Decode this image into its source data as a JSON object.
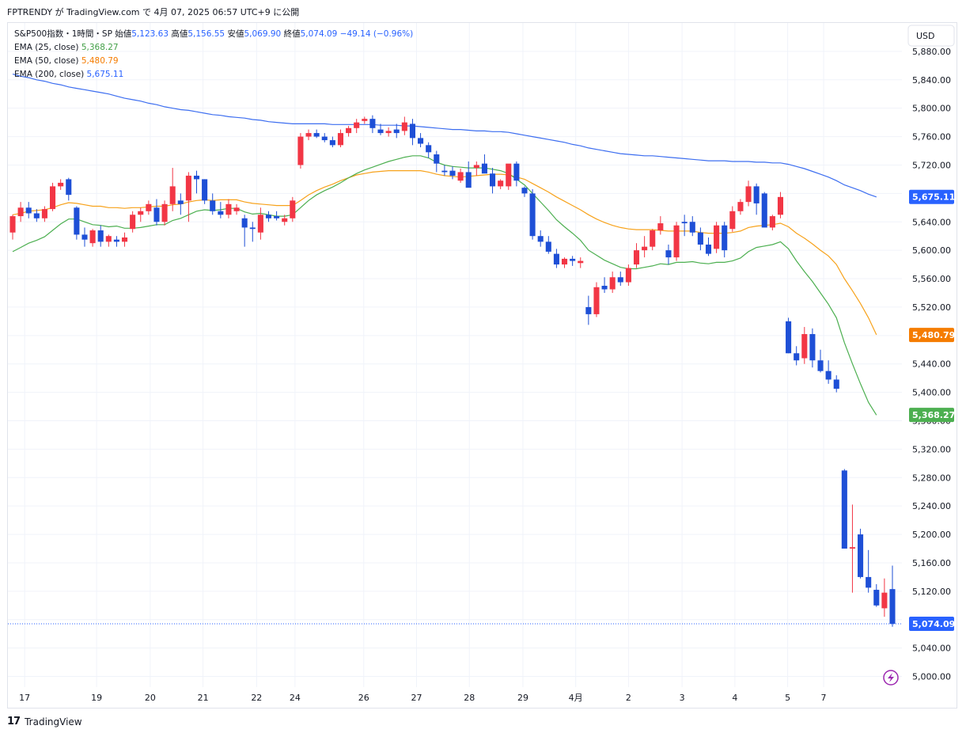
{
  "header": {
    "attribution": "FPTRENDY が TradingView.com で 4月 07, 2025 06:57 UTC+9 に公開"
  },
  "legend": {
    "symbol": "S&P500指数・1時間・SP",
    "open_label": "始値",
    "open": "5,123.63",
    "high_label": "高値",
    "high": "5,156.55",
    "low_label": "安値",
    "low": "5,069.90",
    "close_label": "終値",
    "close": "5,074.09",
    "change": "−49.14 (−0.96%)",
    "ema25_label": "EMA (25, close)",
    "ema25_value": "5,368.27",
    "ema50_label": "EMA (50, close)",
    "ema50_value": "5,480.79",
    "ema200_label": "EMA (200, close)",
    "ema200_value": "5,675.11"
  },
  "currency_button": "USD",
  "footer": {
    "brand": "TradingView"
  },
  "colors": {
    "up": "#f23645",
    "down": "#1e4fd6",
    "ema25": "#4caf50",
    "ema50": "#f7a21b",
    "ema200": "#3d6ef0",
    "grid": "#f0f3fa"
  },
  "chart_data": {
    "type": "candlestick",
    "title": "S&P500指数・1時間・SP",
    "ylim": [
      4985,
      5920
    ],
    "y_ticks": [
      5000,
      5040,
      5080,
      5120,
      5160,
      5200,
      5240,
      5280,
      5320,
      5360,
      5400,
      5440,
      5480,
      5520,
      5560,
      5600,
      5640,
      5680,
      5720,
      5760,
      5800,
      5840,
      5880
    ],
    "y_tick_labels": [
      "5,000.00",
      "5,040.00",
      "5,080.00",
      "5,120.00",
      "5,160.00",
      "5,200.00",
      "5,240.00",
      "5,280.00",
      "5,320.00",
      "5,360.00",
      "5,400.00",
      "5,440.00",
      "5,480.00",
      "5,520.00",
      "5,560.00",
      "5,600.00",
      "5,640.00",
      "5,680.00",
      "5,720.00",
      "5,760.00",
      "5,800.00",
      "5,840.00",
      "5,880.00"
    ],
    "x_labels": [
      {
        "label": "17",
        "bar": 1.5
      },
      {
        "label": "19",
        "bar": 10.5
      },
      {
        "label": "20",
        "bar": 17.2
      },
      {
        "label": "21",
        "bar": 23.8
      },
      {
        "label": "22",
        "bar": 30.5
      },
      {
        "label": "24",
        "bar": 35.3
      },
      {
        "label": "26",
        "bar": 43.9
      },
      {
        "label": "27",
        "bar": 50.5
      },
      {
        "label": "28",
        "bar": 57.1
      },
      {
        "label": "29",
        "bar": 63.8
      },
      {
        "label": "4月",
        "bar": 70.4
      },
      {
        "label": "2",
        "bar": 77.0
      },
      {
        "label": "3",
        "bar": 83.7
      },
      {
        "label": "4",
        "bar": 90.3
      },
      {
        "label": "5",
        "bar": 96.9
      },
      {
        "label": "7",
        "bar": 101.4
      }
    ],
    "candles": [
      [
        5625,
        5650,
        5615,
        5648
      ],
      [
        5648,
        5668,
        5640,
        5660
      ],
      [
        5660,
        5668,
        5645,
        5652
      ],
      [
        5652,
        5658,
        5640,
        5645
      ],
      [
        5645,
        5662,
        5640,
        5658
      ],
      [
        5658,
        5695,
        5655,
        5690
      ],
      [
        5690,
        5700,
        5685,
        5695
      ],
      [
        5700,
        5702,
        5670,
        5678
      ],
      [
        5660,
        5662,
        5615,
        5622
      ],
      [
        5622,
        5632,
        5605,
        5615
      ],
      [
        5610,
        5630,
        5605,
        5628
      ],
      [
        5628,
        5635,
        5605,
        5612
      ],
      [
        5612,
        5622,
        5605,
        5620
      ],
      [
        5615,
        5620,
        5605,
        5612
      ],
      [
        5612,
        5625,
        5605,
        5618
      ],
      [
        5630,
        5655,
        5625,
        5650
      ],
      [
        5650,
        5660,
        5640,
        5655
      ],
      [
        5655,
        5670,
        5650,
        5665
      ],
      [
        5660,
        5672,
        5635,
        5640
      ],
      [
        5640,
        5670,
        5635,
        5665
      ],
      [
        5665,
        5716,
        5655,
        5690
      ],
      [
        5670,
        5680,
        5650,
        5665
      ],
      [
        5670,
        5710,
        5640,
        5705
      ],
      [
        5705,
        5712,
        5680,
        5700
      ],
      [
        5700,
        5700,
        5665,
        5670
      ],
      [
        5670,
        5680,
        5650,
        5655
      ],
      [
        5655,
        5668,
        5645,
        5650
      ],
      [
        5650,
        5672,
        5645,
        5665
      ],
      [
        5655,
        5665,
        5650,
        5660
      ],
      [
        5645,
        5650,
        5605,
        5632
      ],
      [
        5632,
        5640,
        5612,
        5630
      ],
      [
        5625,
        5660,
        5615,
        5650
      ],
      [
        5650,
        5655,
        5640,
        5645
      ],
      [
        5648,
        5655,
        5642,
        5645
      ],
      [
        5640,
        5650,
        5635,
        5645
      ],
      [
        5645,
        5675,
        5640,
        5670
      ],
      [
        5720,
        5765,
        5715,
        5760
      ],
      [
        5760,
        5770,
        5755,
        5765
      ],
      [
        5765,
        5770,
        5758,
        5760
      ],
      [
        5760,
        5765,
        5752,
        5755
      ],
      [
        5755,
        5760,
        5745,
        5748
      ],
      [
        5748,
        5770,
        5745,
        5765
      ],
      [
        5765,
        5775,
        5760,
        5772
      ],
      [
        5772,
        5785,
        5765,
        5780
      ],
      [
        5782,
        5788,
        5778,
        5785
      ],
      [
        5785,
        5790,
        5765,
        5772
      ],
      [
        5770,
        5778,
        5762,
        5765
      ],
      [
        5765,
        5773,
        5760,
        5768
      ],
      [
        5770,
        5778,
        5758,
        5765
      ],
      [
        5768,
        5788,
        5762,
        5780
      ],
      [
        5778,
        5785,
        5748,
        5758
      ],
      [
        5758,
        5765,
        5745,
        5750
      ],
      [
        5748,
        5752,
        5730,
        5738
      ],
      [
        5735,
        5740,
        5710,
        5722
      ],
      [
        5712,
        5720,
        5705,
        5710
      ],
      [
        5712,
        5718,
        5700,
        5705
      ],
      [
        5698,
        5715,
        5695,
        5710
      ],
      [
        5710,
        5725,
        5692,
        5688
      ],
      [
        5716,
        5725,
        5705,
        5720
      ],
      [
        5722,
        5735,
        5710,
        5708
      ],
      [
        5708,
        5716,
        5680,
        5690
      ],
      [
        5690,
        5700,
        5686,
        5698
      ],
      [
        5690,
        5720,
        5685,
        5722
      ],
      [
        5722,
        5725,
        5690,
        5698
      ],
      [
        5688,
        5690,
        5675,
        5680
      ],
      [
        5680,
        5686,
        5615,
        5620
      ],
      [
        5620,
        5628,
        5605,
        5612
      ],
      [
        5612,
        5620,
        5595,
        5598
      ],
      [
        5595,
        5602,
        5575,
        5580
      ],
      [
        5580,
        5590,
        5575,
        5588
      ],
      [
        5588,
        5592,
        5578,
        5585
      ],
      [
        5582,
        5590,
        5575,
        5585
      ],
      [
        5520,
        5536,
        5495,
        5510
      ],
      [
        5510,
        5555,
        5506,
        5548
      ],
      [
        5550,
        5562,
        5540,
        5545
      ],
      [
        5545,
        5570,
        5540,
        5562
      ],
      [
        5562,
        5570,
        5550,
        5555
      ],
      [
        5555,
        5580,
        5550,
        5575
      ],
      [
        5580,
        5610,
        5575,
        5600
      ],
      [
        5600,
        5620,
        5590,
        5605
      ],
      [
        5605,
        5630,
        5600,
        5628
      ],
      [
        5628,
        5648,
        5622,
        5638
      ],
      [
        5600,
        5608,
        5580,
        5590
      ],
      [
        5590,
        5640,
        5585,
        5635
      ],
      [
        5640,
        5650,
        5620,
        5638
      ],
      [
        5640,
        5648,
        5620,
        5625
      ],
      [
        5625,
        5632,
        5600,
        5608
      ],
      [
        5608,
        5618,
        5592,
        5595
      ],
      [
        5602,
        5640,
        5596,
        5635
      ],
      [
        5635,
        5640,
        5590,
        5600
      ],
      [
        5630,
        5662,
        5626,
        5655
      ],
      [
        5655,
        5672,
        5650,
        5668
      ],
      [
        5668,
        5698,
        5662,
        5690
      ],
      [
        5690,
        5694,
        5650,
        5666
      ],
      [
        5680,
        5682,
        5640,
        5632
      ],
      [
        5632,
        5650,
        5628,
        5648
      ],
      [
        5650,
        5682,
        5645,
        5675
      ],
      [
        5500,
        5505,
        5455,
        5455
      ],
      [
        5455,
        5465,
        5438,
        5445
      ],
      [
        5448,
        5492,
        5440,
        5482
      ],
      [
        5482,
        5490,
        5435,
        5445
      ],
      [
        5445,
        5460,
        5428,
        5430
      ],
      [
        5430,
        5445,
        5412,
        5418
      ],
      [
        5418,
        5424,
        5400,
        5405
      ],
      [
        5290,
        5292,
        5185,
        5180
      ],
      [
        5180,
        5242,
        5118,
        5182
      ],
      [
        5200,
        5208,
        5138,
        5140
      ],
      [
        5140,
        5178,
        5118,
        5125
      ],
      [
        5122,
        5130,
        5098,
        5100
      ],
      [
        5096,
        5138,
        5084,
        5118
      ],
      [
        5123,
        5156,
        5070,
        5074
      ]
    ],
    "ema25": [
      5598,
      5604,
      5610,
      5614,
      5619,
      5628,
      5637,
      5644,
      5644,
      5640,
      5636,
      5635,
      5633,
      5634,
      5631,
      5631,
      5632,
      5634,
      5636,
      5636,
      5642,
      5645,
      5650,
      5655,
      5657,
      5656,
      5657,
      5659,
      5659,
      5654,
      5651,
      5652,
      5650,
      5648,
      5648,
      5650,
      5660,
      5670,
      5678,
      5684,
      5689,
      5695,
      5702,
      5708,
      5713,
      5717,
      5721,
      5725,
      5728,
      5731,
      5733,
      5733,
      5730,
      5724,
      5720,
      5718,
      5717,
      5716,
      5716,
      5716,
      5714,
      5712,
      5708,
      5700,
      5692,
      5680,
      5668,
      5656,
      5643,
      5633,
      5624,
      5614,
      5600,
      5593,
      5586,
      5581,
      5576,
      5574,
      5574,
      5576,
      5578,
      5581,
      5580,
      5583,
      5583,
      5584,
      5582,
      5581,
      5583,
      5583,
      5585,
      5589,
      5598,
      5604,
      5606,
      5608,
      5612,
      5602,
      5585,
      5570,
      5556,
      5540,
      5524,
      5505,
      5470,
      5440,
      5412,
      5386,
      5368
    ],
    "ema50": [
      5650,
      5652,
      5655,
      5656,
      5657,
      5660,
      5664,
      5667,
      5666,
      5664,
      5662,
      5662,
      5660,
      5660,
      5659,
      5660,
      5660,
      5661,
      5662,
      5662,
      5664,
      5665,
      5668,
      5670,
      5671,
      5670,
      5671,
      5671,
      5671,
      5668,
      5666,
      5665,
      5664,
      5663,
      5663,
      5663,
      5670,
      5678,
      5684,
      5689,
      5693,
      5698,
      5702,
      5706,
      5708,
      5710,
      5711,
      5712,
      5712,
      5712,
      5712,
      5712,
      5710,
      5707,
      5705,
      5704,
      5703,
      5704,
      5705,
      5706,
      5707,
      5707,
      5706,
      5703,
      5700,
      5694,
      5688,
      5682,
      5675,
      5669,
      5663,
      5657,
      5650,
      5644,
      5639,
      5635,
      5632,
      5630,
      5629,
      5629,
      5629,
      5628,
      5627,
      5627,
      5627,
      5627,
      5625,
      5624,
      5624,
      5624,
      5625,
      5627,
      5632,
      5634,
      5635,
      5636,
      5638,
      5633,
      5624,
      5617,
      5609,
      5600,
      5592,
      5580,
      5560,
      5543,
      5525,
      5505,
      5481
    ],
    "ema200": [
      5848,
      5845,
      5843,
      5840,
      5838,
      5835,
      5833,
      5830,
      5828,
      5826,
      5824,
      5822,
      5820,
      5817,
      5814,
      5812,
      5810,
      5807,
      5805,
      5802,
      5800,
      5798,
      5797,
      5795,
      5793,
      5791,
      5790,
      5788,
      5787,
      5786,
      5784,
      5783,
      5781,
      5780,
      5779,
      5778,
      5778,
      5778,
      5778,
      5778,
      5777,
      5777,
      5777,
      5777,
      5777,
      5777,
      5776,
      5776,
      5776,
      5775,
      5775,
      5774,
      5773,
      5772,
      5771,
      5770,
      5770,
      5769,
      5768,
      5768,
      5767,
      5767,
      5766,
      5764,
      5762,
      5760,
      5758,
      5756,
      5754,
      5752,
      5749,
      5747,
      5744,
      5742,
      5740,
      5738,
      5736,
      5735,
      5734,
      5733,
      5733,
      5732,
      5731,
      5730,
      5729,
      5728,
      5727,
      5726,
      5726,
      5726,
      5725,
      5725,
      5725,
      5724,
      5724,
      5723,
      5723,
      5721,
      5718,
      5715,
      5711,
      5707,
      5703,
      5698,
      5692,
      5688,
      5684,
      5679,
      5675
    ],
    "price_tags": [
      {
        "value": 5675.11,
        "label": "5,675.11",
        "color": "#2962ff"
      },
      {
        "value": 5480.79,
        "label": "5,480.79",
        "color": "#f57c00"
      },
      {
        "value": 5368.27,
        "label": "5,368.27",
        "color": "#4caf50"
      },
      {
        "value": 5074.09,
        "label": "5,074.09",
        "color": "#2962ff"
      }
    ]
  }
}
